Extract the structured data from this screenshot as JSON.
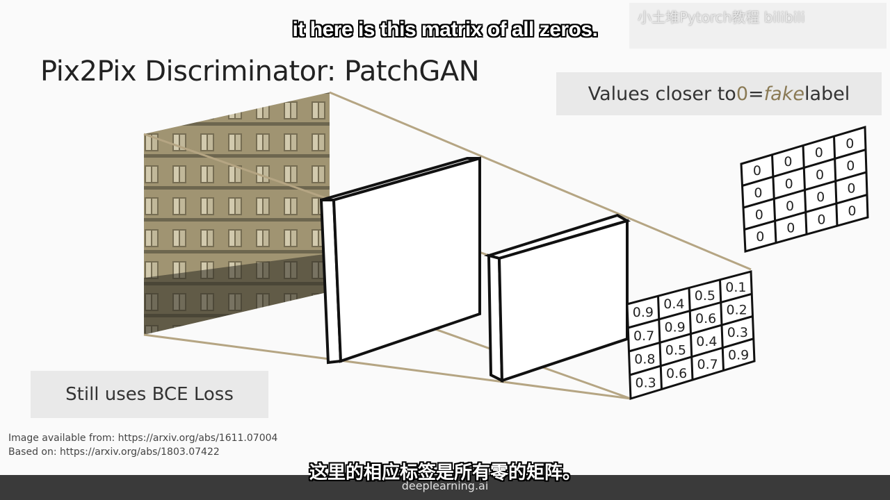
{
  "subtitle_en": "it here is this matrix of all zeros.",
  "subtitle_cn": "这里的相应标签是所有零的矩阵。",
  "watermark": "小土堆Pytorch教程 bilibili",
  "title": "Pix2Pix Discriminator: PatchGAN",
  "note_top": {
    "before": "Values closer to ",
    "zero": "0",
    "eq": " = ",
    "fake": "fake",
    "after": " label"
  },
  "note_bottom": "Still uses BCE Loss",
  "refs": {
    "image": "Image available from: https://arxiv.org/abs/1611.07004",
    "based": "Based on: https://arxiv.org/abs/1803.07422"
  },
  "logo": "deeplearning.ai",
  "colors": {
    "accent": "#b5a583",
    "stroke": "#111111"
  },
  "label_matrix": [
    [
      "0",
      "0",
      "0",
      "0"
    ],
    [
      "0",
      "0",
      "0",
      "0"
    ],
    [
      "0",
      "0",
      "0",
      "0"
    ],
    [
      "0",
      "0",
      "0",
      "0"
    ]
  ],
  "output_matrix": [
    [
      "0.9",
      "0.4",
      "0.5",
      "0.1"
    ],
    [
      "0.7",
      "0.9",
      "0.6",
      "0.2"
    ],
    [
      "0.8",
      "0.5",
      "0.4",
      "0.3"
    ],
    [
      "0.3",
      "0.6",
      "0.7",
      "0.9"
    ]
  ]
}
